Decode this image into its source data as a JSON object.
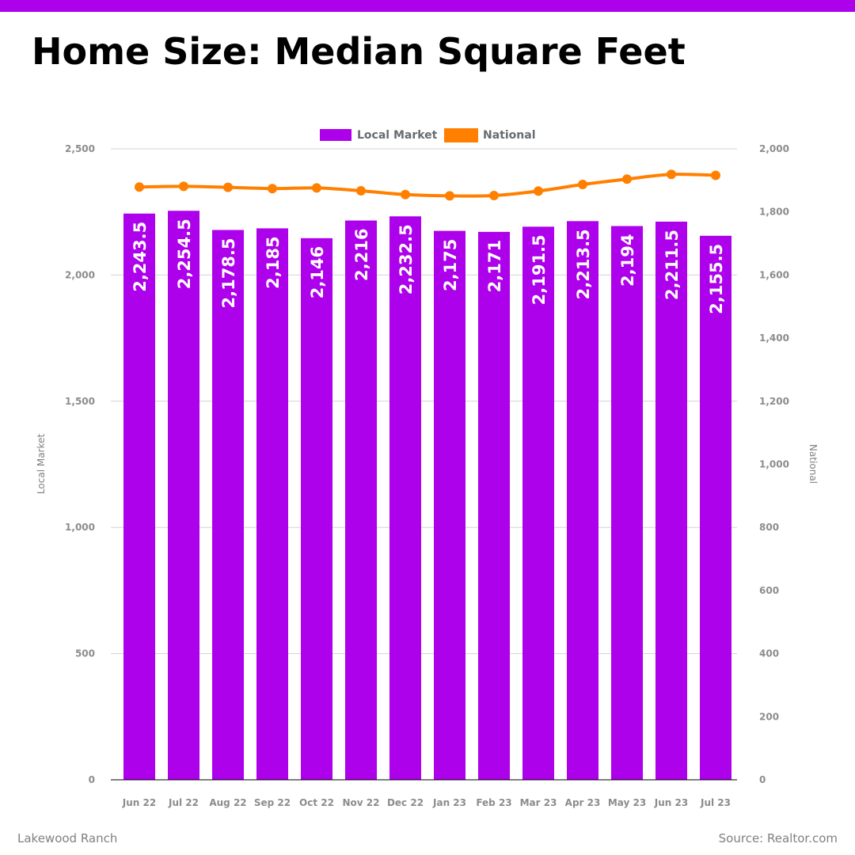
{
  "page": {
    "title": "Home Size: Median Square Feet",
    "footer_left": "Lakewood Ranch",
    "footer_right": "Source: Realtor.com"
  },
  "colors": {
    "accent": "#ad00eb",
    "bar": "#ad00eb",
    "line": "#ff8000",
    "grid": "#d3d3d3",
    "tick_text": "#8c8c8c",
    "legend_text": "#666c73",
    "bar_label": "#ffffff"
  },
  "chart_data": {
    "type": "bar",
    "title": "Home Size: Median Square Feet",
    "categories": [
      "Jun 22",
      "Jul 22",
      "Aug 22",
      "Sep 22",
      "Oct 22",
      "Nov 22",
      "Dec 22",
      "Jan 23",
      "Feb 23",
      "Mar 23",
      "Apr 23",
      "May 23",
      "Jun 23",
      "Jul 23"
    ],
    "series": [
      {
        "name": "Local Market",
        "type": "bar",
        "axis": "left",
        "values": [
          2243.5,
          2254.5,
          2178.5,
          2185,
          2146,
          2216,
          2232.5,
          2175,
          2171,
          2191.5,
          2213.5,
          2194,
          2211.5,
          2155.5
        ],
        "labels": [
          "2,243.5",
          "2,254.5",
          "2,178.5",
          "2,185",
          "2,146",
          "2,216",
          "2,232.5",
          "2,175",
          "2,171",
          "2,191.5",
          "2,213.5",
          "2,194",
          "2,211.5",
          "2,155.5"
        ]
      },
      {
        "name": "National",
        "type": "line",
        "axis": "right",
        "values": [
          1879,
          1881,
          1878,
          1874,
          1876,
          1867,
          1855,
          1851,
          1852,
          1866,
          1887,
          1904,
          1919,
          1916
        ]
      }
    ],
    "y_left": {
      "label": "Local Market",
      "lim": [
        0,
        2500
      ],
      "ticks": [
        0,
        500,
        1000,
        1500,
        2000,
        2500
      ],
      "tick_labels": [
        "0",
        "500",
        "1,000",
        "1,500",
        "2,000",
        "2,500"
      ]
    },
    "y_right": {
      "label": "National",
      "lim": [
        0,
        2000
      ],
      "ticks": [
        0,
        200,
        400,
        600,
        800,
        1000,
        1200,
        1400,
        1600,
        1800,
        2000
      ],
      "tick_labels": [
        "0",
        "200",
        "400",
        "600",
        "800",
        "1,000",
        "1,200",
        "1,400",
        "1,600",
        "1,800",
        "2,000"
      ]
    },
    "xlabel": "",
    "grid": true,
    "legend_position": "top-center"
  }
}
